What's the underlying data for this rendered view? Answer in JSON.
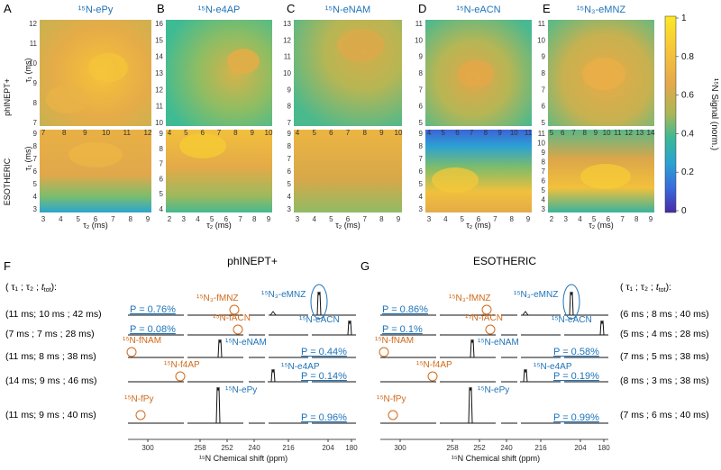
{
  "panel_letters": [
    "A",
    "B",
    "C",
    "D",
    "E",
    "F",
    "G"
  ],
  "colorbar": {
    "label": "¹⁵N Signal (norm.)",
    "ticks": [
      "1",
      "0.8",
      "0.6",
      "0.4",
      "0.2",
      "0"
    ],
    "colors": [
      "#fde725",
      "#f6c23a",
      "#e3a84a",
      "#9ab75c",
      "#34b99a",
      "#2a9fd6",
      "#3d5fd9",
      "#4a2da8"
    ]
  },
  "row_labels": {
    "top": "phINEPT+",
    "bottom": "ESOTHERIC"
  },
  "y_label": "τ₁ (ms)",
  "x_label": "τ₂ (ms)",
  "top_maps": [
    {
      "title": "¹⁵N-ePy",
      "y_ticks": [
        "12",
        "11",
        "10",
        "9",
        "8",
        "7"
      ],
      "x_ticks": [
        "7",
        "8",
        "9",
        "10",
        "11",
        "12"
      ]
    },
    {
      "title": "¹⁵N-e4AP",
      "y_ticks": [
        "16",
        "15",
        "14",
        "13",
        "12",
        "11",
        "10"
      ],
      "x_ticks": [
        "4",
        "5",
        "6",
        "7",
        "8",
        "9",
        "10"
      ]
    },
    {
      "title": "¹⁵N-eNAM",
      "y_ticks": [
        "13",
        "12",
        "11",
        "10",
        "9",
        "8",
        "7"
      ],
      "x_ticks": [
        "4",
        "5",
        "6",
        "7",
        "8",
        "9",
        "10"
      ]
    },
    {
      "title": "¹⁵N-eACN",
      "y_ticks": [
        "11",
        "10",
        "9",
        "8",
        "7",
        "6",
        "5"
      ],
      "x_ticks": [
        "4",
        "5",
        "6",
        "7",
        "8",
        "9",
        "10",
        "11"
      ]
    },
    {
      "title": "¹⁵N₃-eMNZ",
      "y_ticks": [
        "11",
        "10",
        "9",
        "8",
        "7",
        "6",
        "5"
      ],
      "x_ticks": [
        "5",
        "6",
        "7",
        "8",
        "9",
        "10",
        "11",
        "12",
        "13",
        "14"
      ]
    }
  ],
  "bottom_maps": [
    {
      "y_ticks": [
        "9",
        "8",
        "7",
        "6",
        "5",
        "4",
        "3"
      ],
      "x_ticks": [
        "3",
        "4",
        "5",
        "6",
        "7",
        "8",
        "9"
      ]
    },
    {
      "y_ticks": [
        "9",
        "8",
        "7",
        "6",
        "5",
        "4"
      ],
      "x_ticks": [
        "2",
        "3",
        "4",
        "5",
        "6",
        "7",
        "8",
        "9"
      ]
    },
    {
      "y_ticks": [
        "9",
        "8",
        "7",
        "6",
        "5",
        "4",
        "3"
      ],
      "x_ticks": [
        "3",
        "4",
        "5",
        "6",
        "7",
        "8",
        "9"
      ]
    },
    {
      "y_ticks": [
        "9",
        "8",
        "7",
        "6",
        "5",
        "4",
        "3"
      ],
      "x_ticks": [
        "3",
        "4",
        "5",
        "6",
        "7",
        "8",
        "9"
      ]
    },
    {
      "y_ticks": [
        "11",
        "10",
        "9",
        "8",
        "7",
        "6",
        "5",
        "4",
        "3"
      ],
      "x_ticks": [
        "2",
        "3",
        "4",
        "5",
        "6",
        "7",
        "8",
        "9"
      ]
    }
  ],
  "panel_F": {
    "title": "phINEPT+",
    "header": [
      "(",
      "τ₁",
      ";",
      "τ₂",
      ";",
      "t",
      "tot",
      "):"
    ],
    "rows": [
      {
        "params": "(11 ms; 10 ms ; 42 ms)",
        "p": "P = 0.76%",
        "f_label": "¹⁵N₃-fMNZ",
        "e_label": "¹⁵N₃-eMNZ"
      },
      {
        "params": "(7 ms  ; 7 ms  ; 28 ms)",
        "p": "P = 0.08%",
        "f_label": "¹⁵N-fACN",
        "e_label": "¹⁵N-eACN"
      },
      {
        "params": "(11 ms; 8 ms   ; 38 ms)",
        "p": "P = 0.44%",
        "f_label": "¹⁵N-fNAM",
        "e_label": "¹⁵N-eNAM"
      },
      {
        "params": "(14 ms; 9 ms   ; 46 ms)",
        "p": "P = 0.14%",
        "f_label": "¹⁵N-f4AP",
        "e_label": "¹⁵N-e4AP"
      },
      {
        "params": "(11 ms; 9 ms   ; 40 ms)",
        "p": "P = 0.96%",
        "f_label": "¹⁵N-fPy",
        "e_label": "¹⁵N-ePy"
      }
    ],
    "axis_ticks": [
      "300",
      "258",
      "252",
      "240",
      "216",
      "204",
      "180"
    ],
    "axis_label": "¹⁵N Chemical shift (ppm)"
  },
  "panel_G": {
    "title": "ESOTHERIC",
    "header": [
      "(",
      "τ₁",
      ";",
      "τ₂",
      ";",
      "t",
      "tot",
      "):"
    ],
    "rows": [
      {
        "params": "(6 ms  ; 8 ms  ; 40 ms)",
        "p": "P = 0.86%",
        "f_label": "¹⁵N₃-fMNZ",
        "e_label": "¹⁵N₃-eMNZ"
      },
      {
        "params": "(5 ms  ; 4 ms  ; 28 ms)",
        "p": "P = 0.1%",
        "f_label": "¹⁵N-fACN",
        "e_label": "¹⁵N-eACN"
      },
      {
        "params": "(7 ms  ; 5 ms  ; 38 ms)",
        "p": "P = 0.58%",
        "f_label": "¹⁵N-fNAM",
        "e_label": "¹⁵N-eNAM"
      },
      {
        "params": "(8 ms  ; 3 ms  ; 38 ms)",
        "p": "P = 0.19%",
        "f_label": "¹⁵N-f4AP",
        "e_label": "¹⁵N-e4AP"
      },
      {
        "params": "(7 ms  ; 6 ms  ; 40 ms)",
        "p": "P = 0.99%",
        "f_label": "¹⁵N-fPy",
        "e_label": "¹⁵N-ePy"
      }
    ],
    "axis_ticks": [
      "300",
      "258",
      "252",
      "240",
      "216",
      "204",
      "180"
    ],
    "axis_label": "¹⁵N Chemical shift (ppm)"
  }
}
